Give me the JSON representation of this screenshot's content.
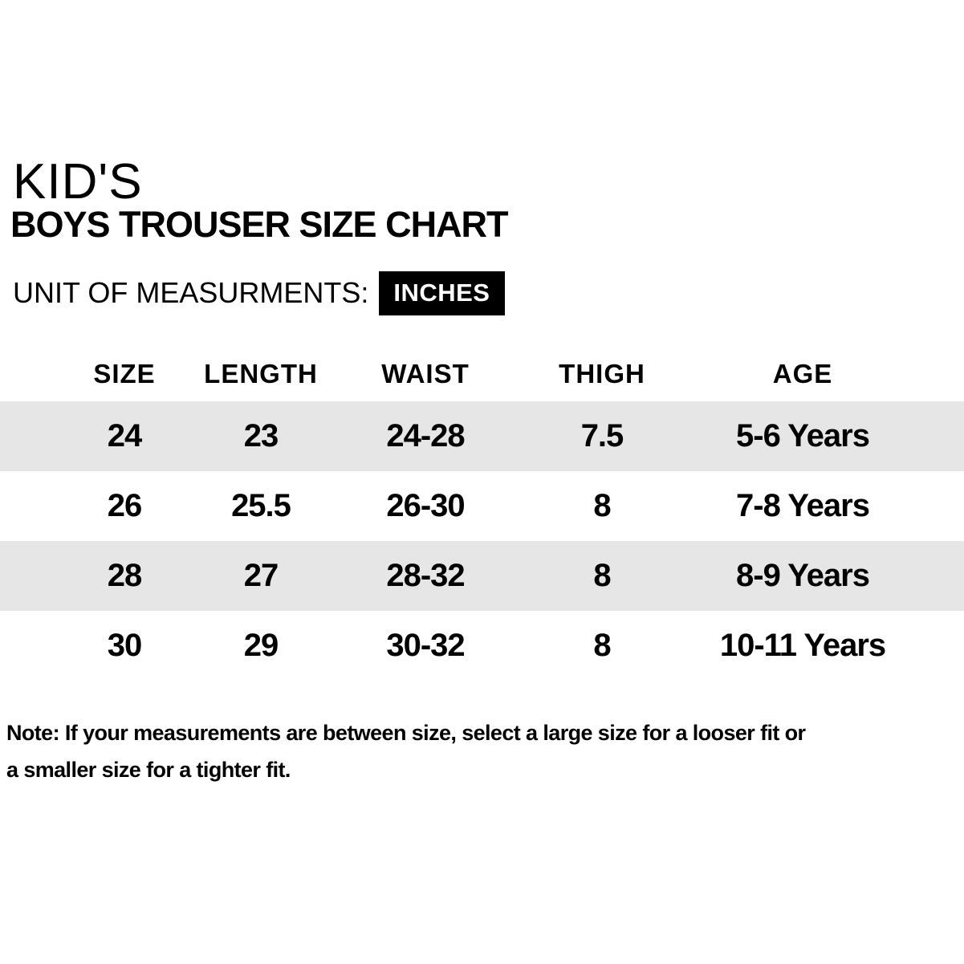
{
  "title": "KID'S",
  "subtitle": "BOYS TROUSER SIZE CHART",
  "unit": {
    "label": "UNIT OF MEASURMENTS:",
    "value": "INCHES"
  },
  "table": {
    "headers": [
      "SIZE",
      "LENGTH",
      "WAIST",
      "THIGH",
      "AGE"
    ],
    "rows": [
      [
        "24",
        "23",
        "24-28",
        "7.5",
        "5-6 Years"
      ],
      [
        "26",
        "25.5",
        "26-30",
        "8",
        "7-8 Years"
      ],
      [
        "28",
        "27",
        "28-32",
        "8",
        "8-9 Years"
      ],
      [
        "30",
        "29",
        "30-32",
        "8",
        "10-11 Years"
      ]
    ]
  },
  "note": {
    "line1": "Note: If your measurements are between size, select a large size for a looser fit or",
    "line2": "a smaller size for a tighter fit."
  },
  "colors": {
    "row_stripe": "#e6e6e6",
    "unit_badge_bg": "#000000",
    "unit_badge_text": "#ffffff",
    "text": "#000000",
    "background": "#ffffff"
  }
}
